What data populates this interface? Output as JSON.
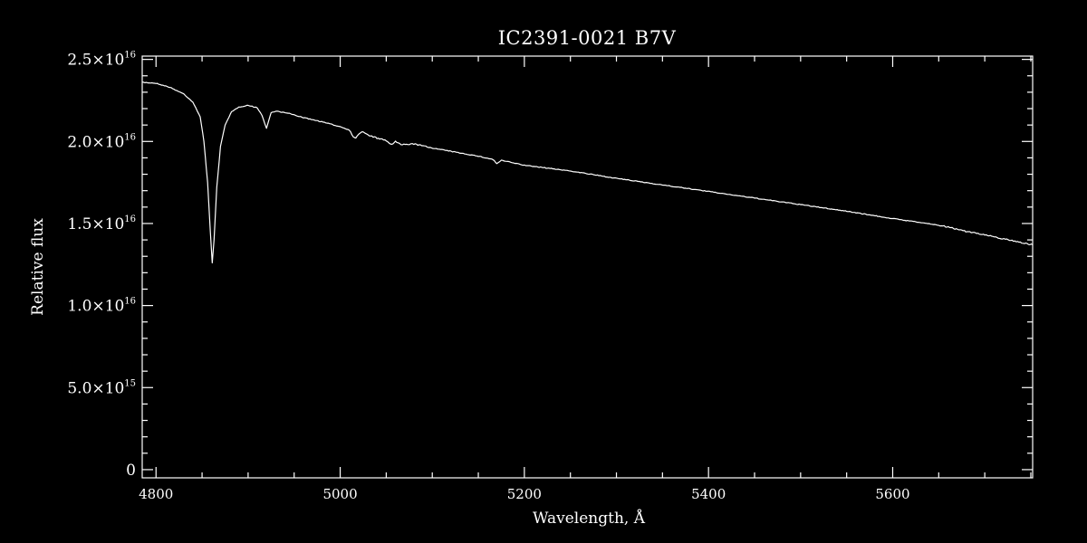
{
  "chart_data": {
    "type": "line",
    "title": "IC2391-0021   B7V",
    "xlabel": "Wavelength, Å",
    "ylabel": "Relative flux",
    "xlim": [
      4785,
      5752
    ],
    "ylim": [
      -500000000000000.0,
      2.52e+16
    ],
    "x_ticks": [
      4800,
      5000,
      5200,
      5400,
      5600
    ],
    "x_tick_labels": [
      "4800",
      "5000",
      "5200",
      "5400",
      "5600"
    ],
    "y_ticks": [
      {
        "value": 0,
        "mantissa": "0",
        "exponent": ""
      },
      {
        "value": 5000000000000000.0,
        "mantissa": "5.0×10",
        "exponent": "15"
      },
      {
        "value": 1e+16,
        "mantissa": "1.0×10",
        "exponent": "16"
      },
      {
        "value": 1.5e+16,
        "mantissa": "1.5×10",
        "exponent": "16"
      },
      {
        "value": 2e+16,
        "mantissa": "2.0×10",
        "exponent": "16"
      },
      {
        "value": 2.5e+16,
        "mantissa": "2.5×10",
        "exponent": "16"
      }
    ],
    "line_color": "#ffffff",
    "background": "#000000",
    "grid": false,
    "series": [
      {
        "x": [
          4785,
          4800,
          4815,
          4830,
          4840,
          4848,
          4852,
          4856,
          4859,
          4861,
          4863,
          4866,
          4870,
          4875,
          4882,
          4890,
          4900,
          4910,
          4915,
          4918,
          4920,
          4922,
          4925,
          4930,
          4945,
          4960,
          4980,
          5000,
          5010,
          5014,
          5017,
          5020,
          5024,
          5030,
          5040,
          5050,
          5056,
          5060,
          5066,
          5080,
          5100,
          5150,
          5166,
          5170,
          5175,
          5200,
          5250,
          5300,
          5350,
          5400,
          5450,
          5500,
          5550,
          5600,
          5650,
          5700,
          5752
        ],
        "y": [
          2.36e+16,
          2.355e+16,
          2.33e+16,
          2.29e+16,
          2.24e+16,
          2.15e+16,
          2e+16,
          1.75e+16,
          1.45e+16,
          1.26e+16,
          1.4e+16,
          1.72e+16,
          1.97e+16,
          2.1e+16,
          2.18e+16,
          2.21e+16,
          2.22e+16,
          2.205e+16,
          2.16e+16,
          2.11e+16,
          2.08e+16,
          2.12e+16,
          2.175e+16,
          2.185e+16,
          2.17e+16,
          2.145e+16,
          2.12e+16,
          2.09e+16,
          2.07e+16,
          2.03e+16,
          2.02e+16,
          2.045e+16,
          2.06e+16,
          2.04e+16,
          2.02e+16,
          2.005e+16,
          1.98e+16,
          2e+16,
          1.98e+16,
          1.985e+16,
          1.96e+16,
          1.91e+16,
          1.89e+16,
          1.865e+16,
          1.885e+16,
          1.855e+16,
          1.82e+16,
          1.775e+16,
          1.735e+16,
          1.695e+16,
          1.655e+16,
          1.615e+16,
          1.575e+16,
          1.53e+16,
          1.49e+16,
          1.43e+16,
          1.37e+16
        ]
      }
    ]
  }
}
